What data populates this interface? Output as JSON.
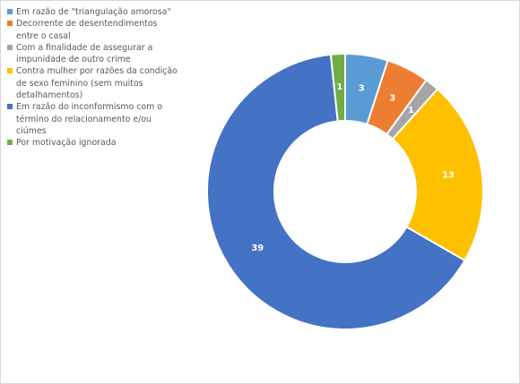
{
  "chart_data": {
    "type": "pie",
    "variant": "doughnut",
    "legend_position": "left",
    "categories": [
      "Em razão de \"triangulação amorosa\"",
      "Decorrente de desentendimentos entre o casal",
      "Com a finalidade de assegurar a impunidade de outro crime",
      "Contra mulher por razões da condição de sexo feminino (sem muitos detalhamentos)",
      "Em razão do inconformismo com o término do relacionamento e/ou ciúmes",
      "Por motivação ignorada"
    ],
    "legend_lines": [
      [
        "Em razão de \"triangulação amorosa\""
      ],
      [
        "Decorrente de desentendimentos",
        "entre o casal"
      ],
      [
        "Com a finalidade de assegurar a",
        "impunidade de outro crime"
      ],
      [
        "Contra mulher por razões da condição",
        "de sexo feminino (sem muitos",
        "detalhamentos)"
      ],
      [
        "Em razão do inconformismo com o",
        "término do relacionamento e/ou",
        "ciúmes"
      ],
      [
        "Por motivação ignorada"
      ]
    ],
    "values": [
      3,
      3,
      1,
      13,
      39,
      1
    ],
    "data_labels": [
      "3",
      "3",
      "1",
      "13",
      "39",
      "1"
    ],
    "colors": [
      "#5B9BD5",
      "#ED7D31",
      "#A5A5A5",
      "#FFC000",
      "#4472C4",
      "#70AD47"
    ]
  }
}
